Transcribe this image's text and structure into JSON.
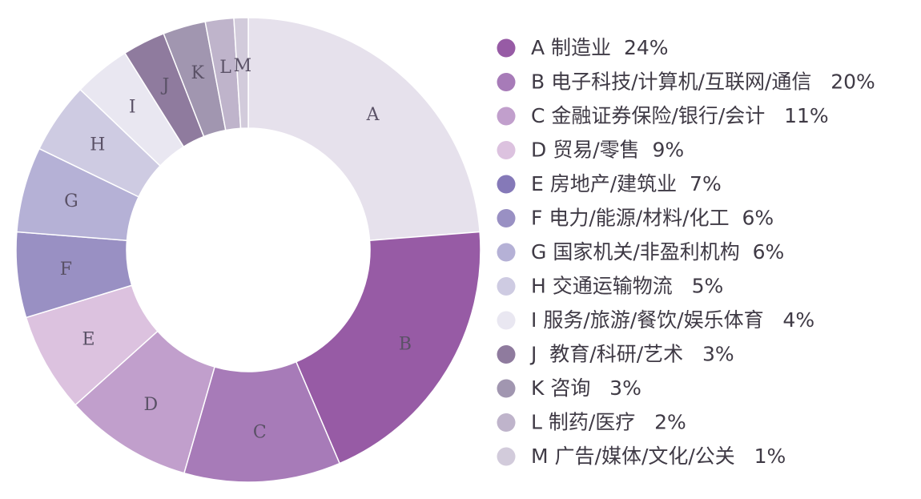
{
  "chart_data": {
    "type": "pie",
    "style": "donut",
    "legend_position": "right",
    "slices": [
      {
        "label": "A",
        "legend": "A 制造业  24%",
        "value": 24,
        "color": "#e6e1ec"
      },
      {
        "label": "B",
        "legend": "B 电子科技/计算机/互联网/通信   20%",
        "value": 20,
        "color": "#975ba5"
      },
      {
        "label": "C",
        "legend": "C 金融证券保险/银行/会计   11%",
        "value": 11,
        "color": "#a77bb8"
      },
      {
        "label": "D",
        "legend": "D 贸易/零售  9%",
        "value": 9,
        "color": "#c19fcc"
      },
      {
        "label": "E",
        "legend": "E 房地产/建筑业  7%",
        "value": 7,
        "color": "#dcc2df"
      },
      {
        "label": "F",
        "legend": "F 电力/能源/材料/化工  6%",
        "value": 6,
        "color": "#9990c3"
      },
      {
        "label": "G",
        "legend": "G 国家机关/非盈利机构  6%",
        "value": 6,
        "color": "#b5b1d6"
      },
      {
        "label": "H",
        "legend": "H 交通运输物流   5%",
        "value": 5,
        "color": "#cecbe2"
      },
      {
        "label": "I",
        "legend": "I 服务/旅游/餐饮/娱乐体育   4%",
        "value": 4,
        "color": "#e9e7f1"
      },
      {
        "label": "J",
        "legend": "J  教育/科研/艺术   3%",
        "value": 3,
        "color": "#8f7b9e"
      },
      {
        "label": "K",
        "legend": "K 咨询   3%",
        "value": 3,
        "color": "#a196b0"
      },
      {
        "label": "L",
        "legend": "L 制药/医疗   2%",
        "value": 2,
        "color": "#bfb4cb"
      },
      {
        "label": "M",
        "legend": "M 广告/媒体/文化/公关   1%",
        "value": 1,
        "color": "#d2cbdb"
      }
    ],
    "legend_marker_colors": [
      "#975ba5",
      "#a77bb8",
      "#c19fcc",
      "#dcc2df",
      "#8579b8",
      "#9990c3",
      "#b5b1d6",
      "#cecbe2",
      "#e9e7f1",
      "#8f7b9e",
      "#a196b0",
      "#bfb4cb",
      "#d2cbdb"
    ]
  }
}
